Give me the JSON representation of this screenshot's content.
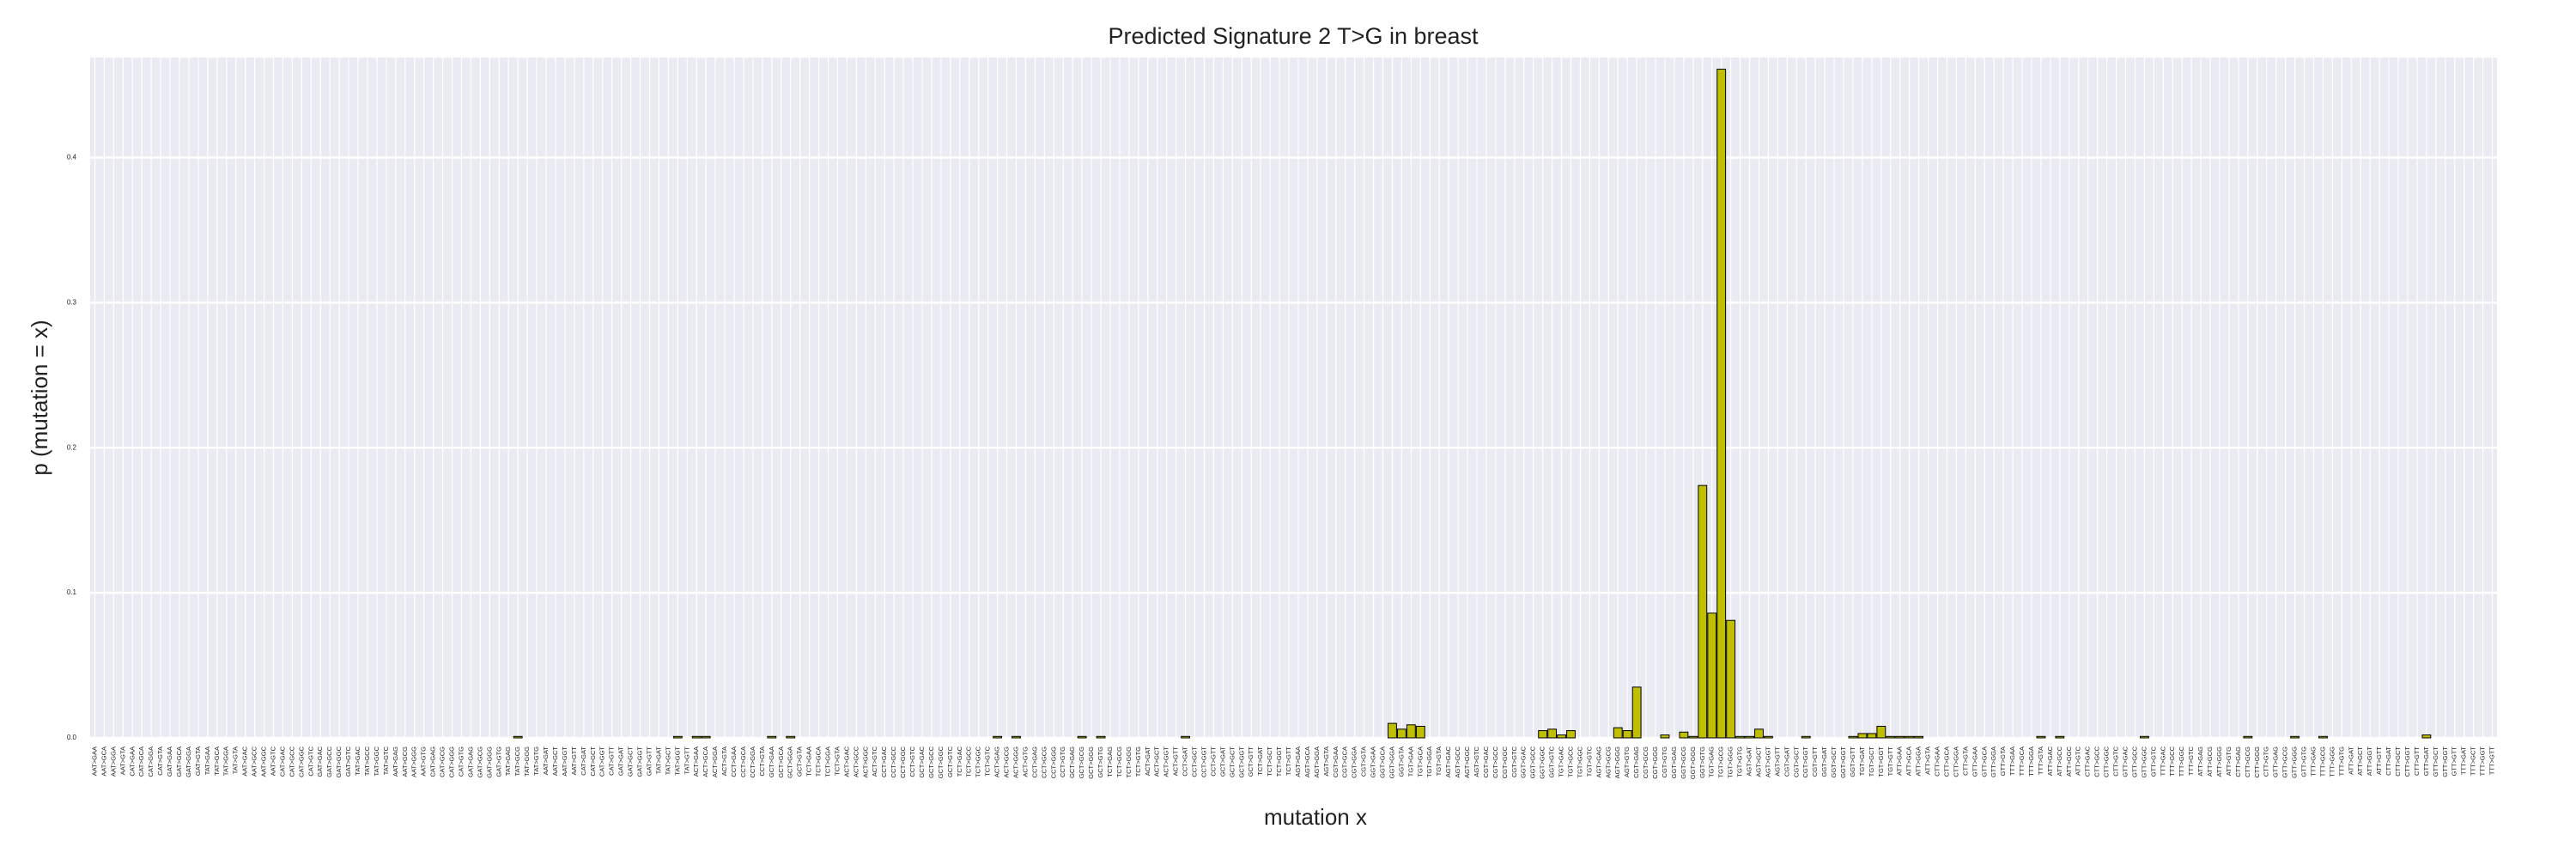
{
  "chart_data": {
    "type": "bar",
    "title": "Predicted Signature 2 T>G in breast",
    "x_label": "mutation x",
    "y_label": "p (mutation = x)",
    "color": "#bfbf00",
    "grid": true,
    "ylim": [
      0,
      0.469
    ],
    "yticks": [
      {
        "value": 0,
        "label": "0.0"
      },
      0.1,
      0.2,
      0.3,
      0.4
    ],
    "categories": [
      "AAT>GAA",
      "AAT>GCA",
      "AAT>GGA",
      "AAT>GTA",
      "CAT>GAA",
      "CAT>GCA",
      "CAT>GGA",
      "CAT>GTA",
      "GAT>GAA",
      "GAT>GCA",
      "GAT>GGA",
      "GAT>GTA",
      "TAT>GAA",
      "TAT>GCA",
      "TAT>GGA",
      "TAT>GTA",
      "AAT>GAC",
      "AAT>GCC",
      "AAT>GGC",
      "AAT>GTC",
      "CAT>GAC",
      "CAT>GCC",
      "CAT>GGC",
      "CAT>GTC",
      "GAT>GAC",
      "GAT>GCC",
      "GAT>GGC",
      "GAT>GTC",
      "TAT>GAC",
      "TAT>GCC",
      "TAT>GGC",
      "TAT>GTC",
      "AAT>GAG",
      "AAT>GCG",
      "AAT>GGG",
      "AAT>GTG",
      "CAT>GAG",
      "CAT>GCG",
      "CAT>GGG",
      "CAT>GTG",
      "GAT>GAG",
      "GAT>GCG",
      "GAT>GGG",
      "GAT>GTG",
      "TAT>GAG",
      "TAT>GCG",
      "TAT>GGG",
      "TAT>GTG",
      "AAT>GAT",
      "AAT>GCT",
      "AAT>GGT",
      "AAT>GTT",
      "CAT>GAT",
      "CAT>GCT",
      "CAT>GGT",
      "CAT>GTT",
      "GAT>GAT",
      "GAT>GCT",
      "GAT>GGT",
      "GAT>GTT",
      "TAT>GAT",
      "TAT>GCT",
      "TAT>GGT",
      "TAT>GTT",
      "ACT>GAA",
      "ACT>GCA",
      "ACT>GGA",
      "ACT>GTA",
      "CCT>GAA",
      "CCT>GCA",
      "CCT>GGA",
      "CCT>GTA",
      "GCT>GAA",
      "GCT>GCA",
      "GCT>GGA",
      "GCT>GTA",
      "TCT>GAA",
      "TCT>GCA",
      "TCT>GGA",
      "TCT>GTA",
      "ACT>GAC",
      "ACT>GCC",
      "ACT>GGC",
      "ACT>GTC",
      "CCT>GAC",
      "CCT>GCC",
      "CCT>GGC",
      "CCT>GTC",
      "GCT>GAC",
      "GCT>GCC",
      "GCT>GGC",
      "GCT>GTC",
      "TCT>GAC",
      "TCT>GCC",
      "TCT>GGC",
      "TCT>GTC",
      "ACT>GAG",
      "ACT>GCG",
      "ACT>GGG",
      "ACT>GTG",
      "CCT>GAG",
      "CCT>GCG",
      "CCT>GGG",
      "CCT>GTG",
      "GCT>GAG",
      "GCT>GCG",
      "GCT>GGG",
      "GCT>GTG",
      "TCT>GAG",
      "TCT>GCG",
      "TCT>GGG",
      "TCT>GTG",
      "ACT>GAT",
      "ACT>GCT",
      "ACT>GGT",
      "ACT>GTT",
      "CCT>GAT",
      "CCT>GCT",
      "CCT>GGT",
      "CCT>GTT",
      "GCT>GAT",
      "GCT>GCT",
      "GCT>GGT",
      "GCT>GTT",
      "TCT>GAT",
      "TCT>GCT",
      "TCT>GGT",
      "TCT>GTT",
      "AGT>GAA",
      "AGT>GCA",
      "AGT>GGA",
      "AGT>GTA",
      "CGT>GAA",
      "CGT>GCA",
      "CGT>GGA",
      "CGT>GTA",
      "GGT>GAA",
      "GGT>GCA",
      "GGT>GGA",
      "GGT>GTA",
      "TGT>GAA",
      "TGT>GCA",
      "TGT>GGA",
      "TGT>GTA",
      "AGT>GAC",
      "AGT>GCC",
      "AGT>GGC",
      "AGT>GTC",
      "CGT>GAC",
      "CGT>GCC",
      "CGT>GGC",
      "CGT>GTC",
      "GGT>GAC",
      "GGT>GCC",
      "GGT>GGC",
      "GGT>GTC",
      "TGT>GAC",
      "TGT>GCC",
      "TGT>GGC",
      "TGT>GTC",
      "AGT>GAG",
      "AGT>GCG",
      "AGT>GGG",
      "AGT>GTG",
      "CGT>GAG",
      "CGT>GCG",
      "CGT>GGG",
      "CGT>GTG",
      "GGT>GAG",
      "GGT>GCG",
      "GGT>GGG",
      "GGT>GTG",
      "TGT>GAG",
      "TGT>GCG",
      "TGT>GGG",
      "TGT>GTG",
      "AGT>GAT",
      "AGT>GCT",
      "AGT>GGT",
      "AGT>GTT",
      "CGT>GAT",
      "CGT>GCT",
      "CGT>GGT",
      "CGT>GTT",
      "GGT>GAT",
      "GGT>GCT",
      "GGT>GGT",
      "GGT>GTT",
      "TGT>GAT",
      "TGT>GCT",
      "TGT>GGT",
      "TGT>GTT",
      "ATT>GAA",
      "ATT>GCA",
      "ATT>GGA",
      "ATT>GTA",
      "CTT>GAA",
      "CTT>GCA",
      "CTT>GGA",
      "CTT>GTA",
      "GTT>GAA",
      "GTT>GCA",
      "GTT>GGA",
      "GTT>GTA",
      "TTT>GAA",
      "TTT>GCA",
      "TTT>GGA",
      "TTT>GTA",
      "ATT>GAC",
      "ATT>GCC",
      "ATT>GGC",
      "ATT>GTC",
      "CTT>GAC",
      "CTT>GCC",
      "CTT>GGC",
      "CTT>GTC",
      "GTT>GAC",
      "GTT>GCC",
      "GTT>GGC",
      "GTT>GTC",
      "TTT>GAC",
      "TTT>GCC",
      "TTT>GGC",
      "TTT>GTC",
      "ATT>GAG",
      "ATT>GCG",
      "ATT>GGG",
      "ATT>GTG",
      "CTT>GAG",
      "CTT>GCG",
      "CTT>GGG",
      "CTT>GTG",
      "GTT>GAG",
      "GTT>GCG",
      "GTT>GGG",
      "GTT>GTG",
      "TTT>GAG",
      "TTT>GCG",
      "TTT>GGG",
      "TTT>GTG",
      "ATT>GAT",
      "ATT>GCT",
      "ATT>GGT",
      "ATT>GTT",
      "CTT>GAT",
      "CTT>GCT",
      "CTT>GGT",
      "CTT>GTT",
      "GTT>GAT",
      "GTT>GCT",
      "GTT>GGT",
      "GTT>GTT",
      "TTT>GAT",
      "TTT>GCT",
      "TTT>GGT",
      "TTT>GTT"
    ],
    "values": [
      0,
      0,
      0,
      0,
      0,
      0,
      0,
      0,
      0,
      0,
      0,
      0,
      0,
      0,
      0,
      0,
      0,
      0,
      0,
      0,
      0,
      0,
      0,
      0,
      0,
      0,
      0,
      0,
      0,
      0,
      0,
      0,
      0,
      0,
      0,
      0,
      0,
      0,
      0,
      0,
      0,
      0,
      0,
      0,
      0,
      0.001,
      0,
      0,
      0,
      0,
      0,
      0,
      0,
      0,
      0,
      0,
      0,
      0,
      0,
      0,
      0,
      0,
      0.001,
      0,
      0.001,
      0.001,
      0,
      0,
      0,
      0,
      0,
      0,
      0.001,
      0,
      0.001,
      0,
      0,
      0,
      0,
      0,
      0,
      0,
      0,
      0,
      0,
      0,
      0,
      0,
      0,
      0,
      0,
      0,
      0,
      0,
      0,
      0,
      0.001,
      0,
      0.001,
      0,
      0,
      0,
      0,
      0,
      0,
      0.001,
      0,
      0.001,
      0,
      0,
      0,
      0,
      0,
      0,
      0,
      0,
      0.001,
      0,
      0,
      0,
      0,
      0,
      0,
      0,
      0,
      0,
      0,
      0,
      0,
      0,
      0,
      0,
      0,
      0,
      0,
      0,
      0,
      0,
      0.01,
      0.006,
      0.009,
      0.008,
      0,
      0,
      0,
      0,
      0,
      0,
      0,
      0,
      0,
      0,
      0,
      0,
      0.005,
      0.006,
      0.002,
      0.005,
      0,
      0,
      0,
      0,
      0.007,
      0.005,
      0.035,
      0,
      0,
      0.002,
      0,
      0.004,
      0.001,
      0.174,
      0.086,
      0.461,
      0.081,
      0.001,
      0.001,
      0.006,
      0.001,
      0,
      0,
      0,
      0.001,
      0,
      0,
      0,
      0,
      0.001,
      0.003,
      0.003,
      0.008,
      0.001,
      0.001,
      0.001,
      0.001,
      0,
      0,
      0,
      0,
      0,
      0,
      0,
      0,
      0,
      0,
      0,
      0,
      0.001,
      0,
      0.001,
      0,
      0,
      0,
      0,
      0,
      0,
      0,
      0,
      0.001,
      0,
      0,
      0,
      0,
      0,
      0,
      0,
      0,
      0,
      0,
      0.001,
      0,
      0,
      0,
      0,
      0.001,
      0,
      0,
      0.001,
      0,
      0,
      0,
      0,
      0,
      0,
      0,
      0,
      0,
      0,
      0.002,
      0,
      0,
      0,
      0,
      0,
      0,
      0
    ]
  }
}
